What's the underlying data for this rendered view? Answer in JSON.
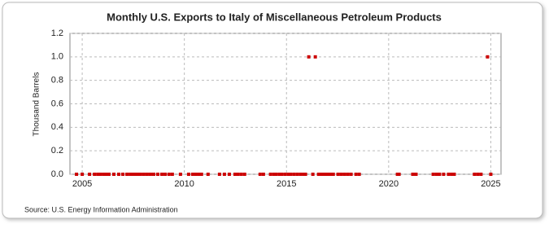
{
  "chart_data": {
    "type": "scatter",
    "title": "Monthly U.S. Exports to Italy of Miscellaneous Petroleum Products",
    "y_label": "Thousand Barrels",
    "source": "Source: U.S. Energy Information Administration",
    "x": [
      2004.72,
      2005.0,
      2005.36,
      2005.6,
      2005.76,
      2005.91,
      2006.07,
      2006.19,
      2006.31,
      2006.55,
      2006.79,
      2006.99,
      2007.19,
      2007.35,
      2007.5,
      2007.62,
      2007.74,
      2007.86,
      2008.02,
      2008.18,
      2008.34,
      2008.5,
      2008.7,
      2008.9,
      2009.06,
      2009.25,
      2009.41,
      2009.81,
      2010.21,
      2010.41,
      2010.57,
      2010.73,
      2010.84,
      2011.16,
      2011.72,
      2011.96,
      2012.2,
      2012.48,
      2012.63,
      2012.79,
      2012.95,
      2013.71,
      2013.87,
      2014.22,
      2014.38,
      2014.5,
      2014.66,
      2014.78,
      2014.94,
      2015.1,
      2015.22,
      2015.38,
      2015.54,
      2015.7,
      2015.85,
      2015.93,
      2016.09,
      2016.29,
      2016.41,
      2016.57,
      2016.69,
      2016.81,
      2016.93,
      2017.05,
      2017.17,
      2017.29,
      2017.52,
      2017.68,
      2017.84,
      2018.0,
      2018.16,
      2018.4,
      2018.56,
      2020.43,
      2020.51,
      2021.18,
      2021.34,
      2022.18,
      2022.34,
      2022.49,
      2022.69,
      2022.93,
      2023.09,
      2023.21,
      2024.2,
      2024.36,
      2024.52,
      2024.84,
      2025.0
    ],
    "values": [
      0,
      0,
      0,
      0,
      0,
      0,
      0,
      0,
      0,
      0,
      0,
      0,
      0,
      0,
      0,
      0,
      0,
      0,
      0,
      0,
      0,
      0,
      0,
      0,
      0,
      0,
      0,
      0,
      0,
      0,
      0,
      0,
      0,
      0,
      0,
      0,
      0,
      0,
      0,
      0,
      0,
      0,
      0,
      0,
      0,
      0,
      0,
      0,
      0,
      0,
      0,
      0,
      0,
      0,
      0,
      0,
      1,
      0,
      1,
      0,
      0,
      0,
      0,
      0,
      0,
      0,
      0,
      0,
      0,
      0,
      0,
      0,
      0,
      0,
      0,
      0,
      0,
      0,
      0,
      0,
      0,
      0,
      0,
      0,
      0,
      0,
      0,
      1,
      0
    ],
    "color": "#cc0000",
    "xlim": [
      2004.4,
      2025.5
    ],
    "xticks": [
      2005,
      2010,
      2015,
      2020,
      2025
    ],
    "ylim": [
      0,
      1.2
    ],
    "yticks": [
      {
        "value": 0,
        "label": "0.0"
      },
      {
        "value": 0.2,
        "label": "0.2"
      },
      {
        "value": 0.4,
        "label": "0.4"
      },
      {
        "value": 0.6,
        "label": "0.6"
      },
      {
        "value": 0.8,
        "label": "0.8"
      },
      {
        "value": 1,
        "label": "1.0"
      },
      1.2
    ],
    "grid": true
  }
}
